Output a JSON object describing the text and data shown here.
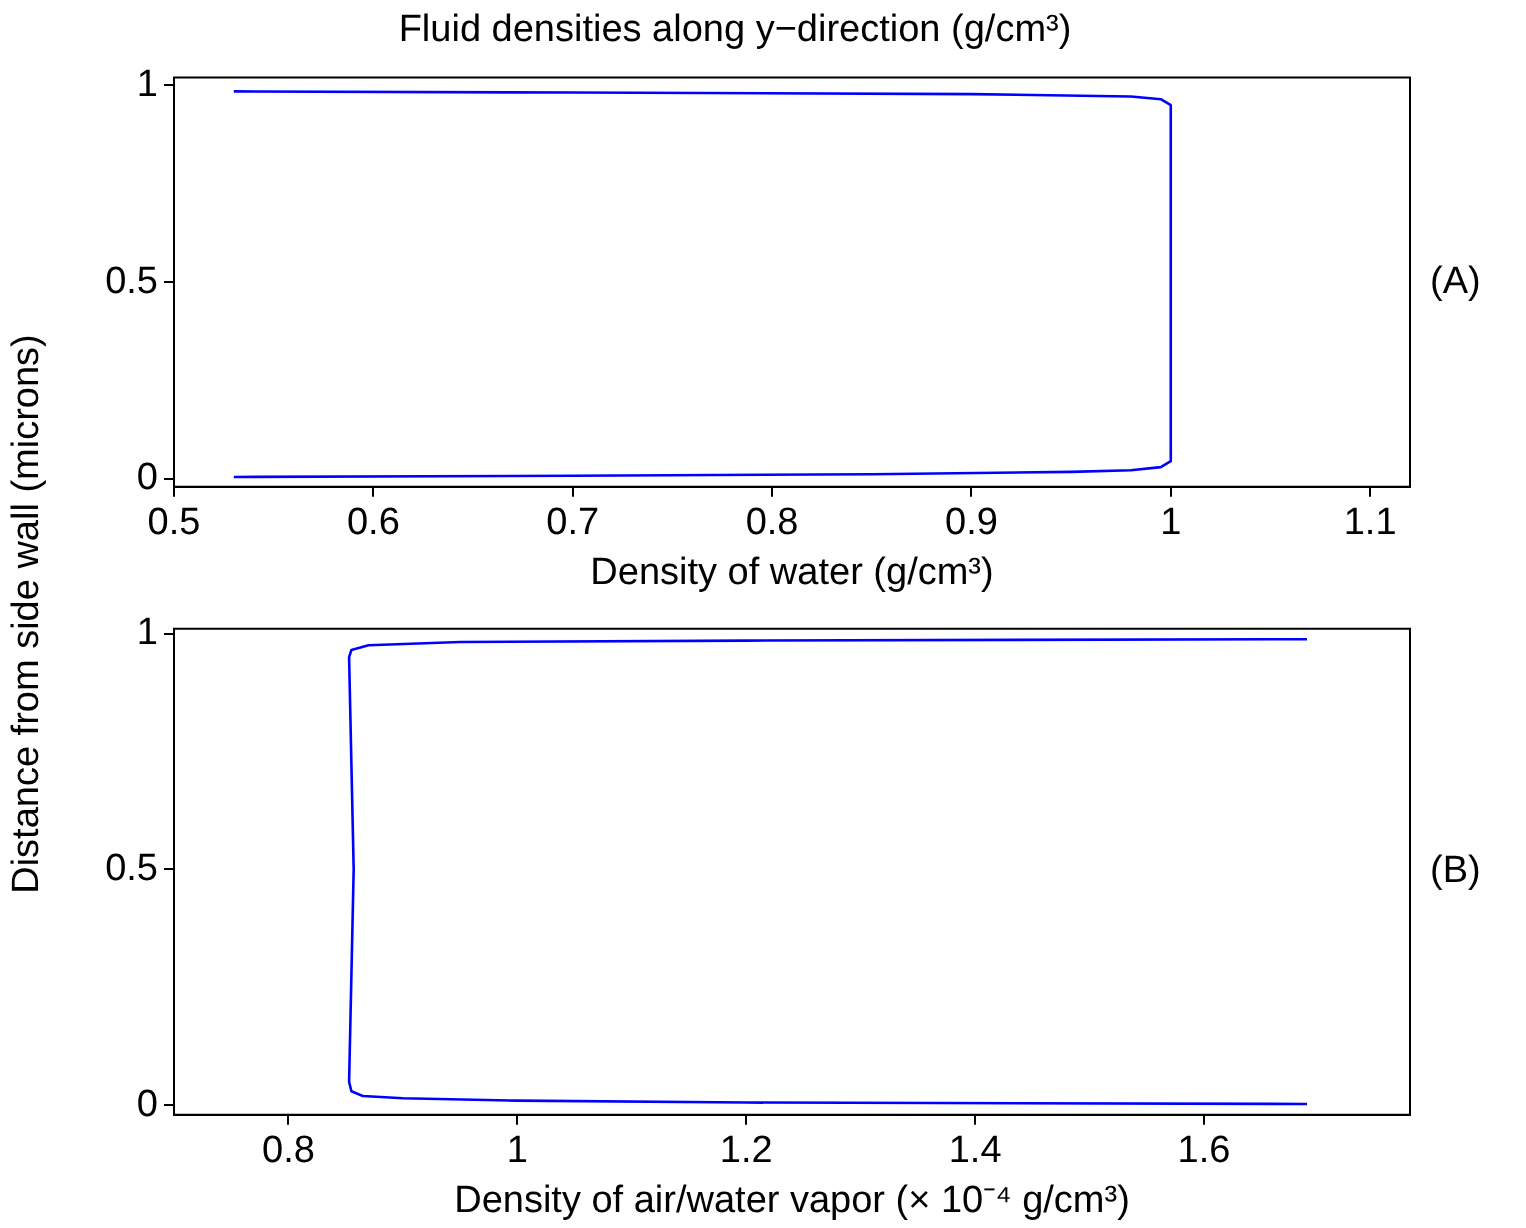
{
  "chart_data": [
    {
      "type": "line",
      "title": "Fluid densities along y−direction (g/cm³)",
      "xlabel": "Density of water (g/cm³)",
      "ylabel": "Distance from side wall (microns)",
      "annotations": [
        "(A)"
      ],
      "xlim": [
        0.5,
        1.12
      ],
      "xticks": [
        0.5,
        0.6,
        0.7,
        0.8,
        0.9,
        1,
        1.1
      ],
      "ylim": [
        -0.02,
        1.02
      ],
      "yticks": [
        0,
        0.5,
        1
      ],
      "grid": false,
      "legend": false,
      "marker": "none",
      "line_style": "solid",
      "series": [
        {
          "color": "#0000ff",
          "x": [
            0.53,
            0.7,
            0.85,
            0.95,
            0.98,
            0.995,
            1.0,
            1.0,
            0.995,
            0.98,
            0.9,
            0.7,
            0.53
          ],
          "values": [
            0.005,
            0.008,
            0.012,
            0.018,
            0.022,
            0.03,
            0.045,
            0.95,
            0.965,
            0.972,
            0.978,
            0.982,
            0.985
          ]
        }
      ]
    },
    {
      "type": "line",
      "xlabel": "Density of air/water vapor (× 10⁻⁴ g/cm³)",
      "annotations": [
        "(B)"
      ],
      "xlim": [
        0.7,
        1.78
      ],
      "xticks": [
        0.8,
        1,
        1.2,
        1.4,
        1.6
      ],
      "ylim": [
        -0.02,
        1.01
      ],
      "yticks": [
        0,
        0.5,
        1
      ],
      "grid": false,
      "legend": false,
      "marker": "none",
      "line_style": "solid",
      "series": [
        {
          "color": "#0000ff",
          "x": [
            1.69,
            1.2,
            1.0,
            0.9,
            0.865,
            0.855,
            0.853,
            0.857,
            0.853,
            0.855,
            0.87,
            0.95,
            1.2,
            1.69
          ],
          "values": [
            0.003,
            0.006,
            0.01,
            0.015,
            0.02,
            0.03,
            0.05,
            0.5,
            0.95,
            0.965,
            0.975,
            0.982,
            0.985,
            0.988
          ]
        }
      ]
    }
  ]
}
